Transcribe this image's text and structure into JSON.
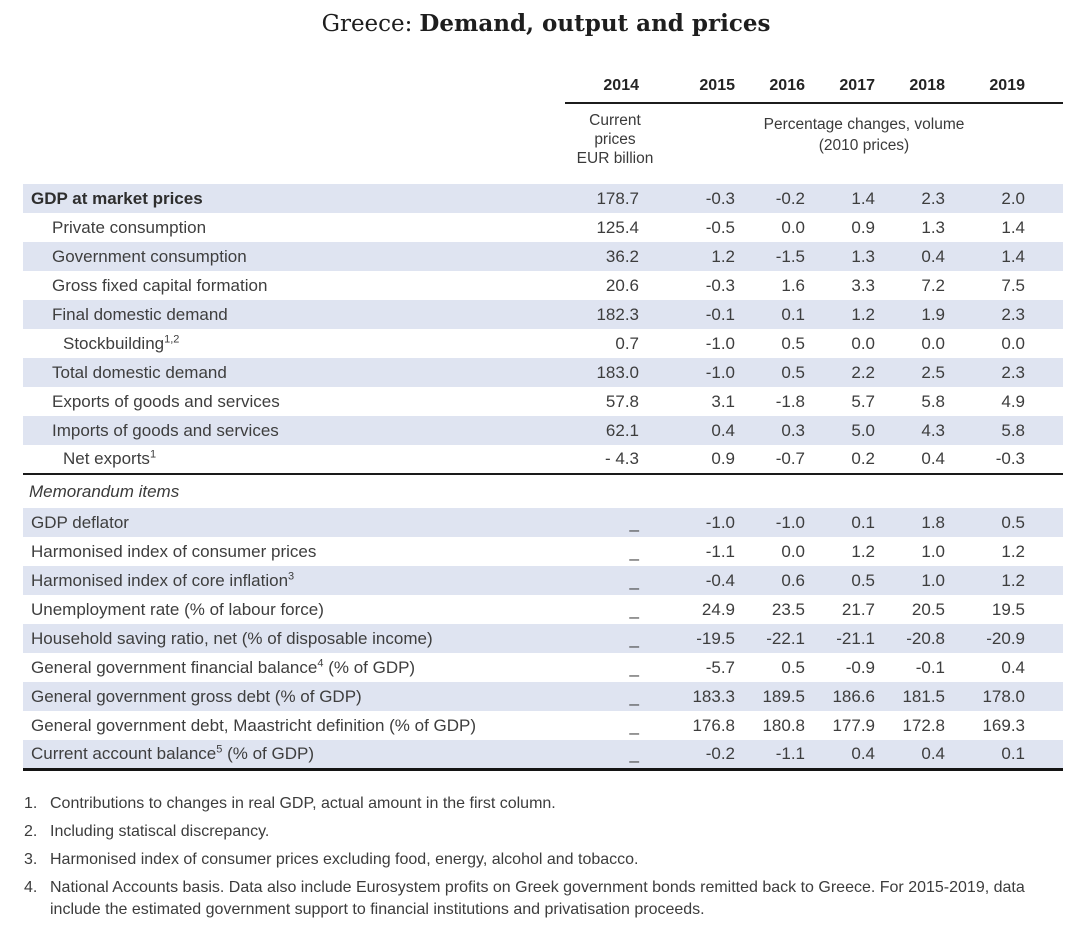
{
  "title": {
    "country": "Greece:",
    "subject": "Demand, output and prices"
  },
  "colors": {
    "row_shade": "#dfe4f1",
    "text": "#3d3d3d",
    "rule": "#1a1a1a",
    "background": "#ffffff"
  },
  "table": {
    "years": [
      "2014",
      "2015",
      "2016",
      "2017",
      "2018",
      "2019"
    ],
    "col2014_subheader_lines": [
      "Current",
      "prices",
      "EUR billion"
    ],
    "volume_subheader_lines": [
      "Percentage changes, volume",
      "(2010 prices)"
    ],
    "rows": [
      {
        "label": "GDP at market prices",
        "bold": true,
        "indent": 0,
        "shaded": true,
        "values": [
          "178.7",
          "-0.3",
          "-0.2",
          "1.4",
          "2.3",
          "2.0"
        ]
      },
      {
        "label": "Private consumption",
        "indent": 1,
        "shaded": false,
        "values": [
          "125.4",
          "-0.5",
          "0.0",
          "0.9",
          "1.3",
          "1.4"
        ]
      },
      {
        "label": "Government consumption",
        "indent": 1,
        "shaded": true,
        "values": [
          "36.2",
          "1.2",
          "-1.5",
          "1.3",
          "0.4",
          "1.4"
        ]
      },
      {
        "label": "Gross fixed capital formation",
        "indent": 1,
        "shaded": false,
        "values": [
          "20.6",
          "-0.3",
          "1.6",
          "3.3",
          "7.2",
          "7.5"
        ]
      },
      {
        "label": "Final domestic demand",
        "indent": 1,
        "shaded": true,
        "values": [
          "182.3",
          "-0.1",
          "0.1",
          "1.2",
          "1.9",
          "2.3"
        ]
      },
      {
        "label": "Stockbuilding",
        "sup": "1,2",
        "indent": 2,
        "shaded": false,
        "values": [
          "0.7",
          "-1.0",
          "0.5",
          "0.0",
          "0.0",
          "0.0"
        ]
      },
      {
        "label": "Total domestic demand",
        "indent": 1,
        "shaded": true,
        "values": [
          "183.0",
          "-1.0",
          "0.5",
          "2.2",
          "2.5",
          "2.3"
        ]
      },
      {
        "label": "Exports of goods and services",
        "indent": 1,
        "shaded": false,
        "values": [
          "57.8",
          "3.1",
          "-1.8",
          "5.7",
          "5.8",
          "4.9"
        ]
      },
      {
        "label": "Imports of goods and services",
        "indent": 1,
        "shaded": true,
        "values": [
          "62.1",
          "0.4",
          "0.3",
          "5.0",
          "4.3",
          "5.8"
        ]
      },
      {
        "label": "Net exports",
        "sup": "1",
        "indent": 2,
        "shaded": false,
        "values": [
          "- 4.3",
          "0.9",
          "-0.7",
          "0.2",
          "0.4",
          "-0.3"
        ]
      },
      {
        "label": "Memorandum items",
        "type": "section"
      },
      {
        "label": "GDP deflator",
        "indent": 0,
        "shaded": true,
        "values": [
          "_",
          "-1.0",
          "-1.0",
          "0.1",
          "1.8",
          "0.5"
        ]
      },
      {
        "label": "Harmonised index of consumer prices",
        "indent": 0,
        "shaded": false,
        "values": [
          "_",
          "-1.1",
          "0.0",
          "1.2",
          "1.0",
          "1.2"
        ]
      },
      {
        "label": "Harmonised index of core inflation",
        "sup": "3",
        "indent": 0,
        "shaded": true,
        "values": [
          "_",
          "-0.4",
          "0.6",
          "0.5",
          "1.0",
          "1.2"
        ]
      },
      {
        "label": "Unemployment rate (% of labour force)",
        "indent": 0,
        "shaded": false,
        "values": [
          "_",
          "24.9",
          "23.5",
          "21.7",
          "20.5",
          "19.5"
        ]
      },
      {
        "label": "Household saving ratio, net (% of disposable income)",
        "indent": 0,
        "shaded": true,
        "values": [
          "_",
          "-19.5",
          "-22.1",
          "-21.1",
          "-20.8",
          "-20.9"
        ]
      },
      {
        "label": "General government financial balance",
        "sup": "4",
        "suffix": " (% of GDP)",
        "indent": 0,
        "shaded": false,
        "values": [
          "_",
          "-5.7",
          "0.5",
          "-0.9",
          "-0.1",
          "0.4"
        ]
      },
      {
        "label": "General government gross debt (% of GDP)",
        "indent": 0,
        "shaded": true,
        "values": [
          "_",
          "183.3",
          "189.5",
          "186.6",
          "181.5",
          "178.0"
        ]
      },
      {
        "label": "General government debt, Maastricht definition (% of GDP)",
        "indent": 0,
        "shaded": false,
        "values": [
          "_",
          "176.8",
          "180.8",
          "177.9",
          "172.8",
          "169.3"
        ]
      },
      {
        "label": "Current account balance",
        "sup": "5",
        "suffix": " (% of GDP)",
        "indent": 0,
        "shaded": true,
        "values": [
          "_",
          "-0.2",
          "-1.1",
          "0.4",
          "0.4",
          "0.1"
        ]
      }
    ]
  },
  "footnotes": [
    {
      "num": "1.",
      "text": "Contributions to changes in real GDP, actual amount in the first column."
    },
    {
      "num": "2.",
      "text": "Including statiscal discrepancy."
    },
    {
      "num": "3.",
      "text": "Harmonised index of consumer prices excluding food, energy, alcohol and tobacco."
    },
    {
      "num": "4.",
      "text": "National Accounts basis. Data also include Eurosystem profits on Greek government bonds remitted back to Greece. For 2015-2019, data include the estimated government support to financial institutions and privatisation proceeds."
    }
  ]
}
